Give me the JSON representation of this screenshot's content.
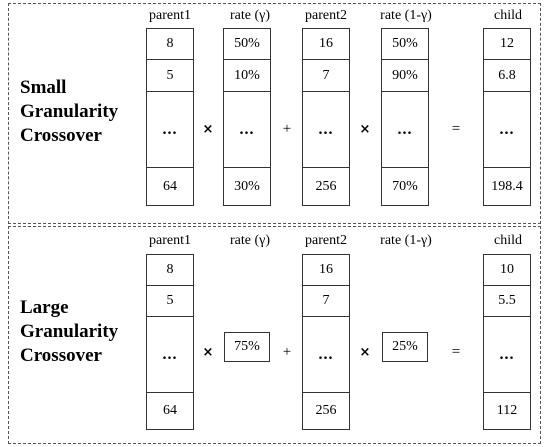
{
  "panels": [
    {
      "title_lines": [
        "Small",
        "Granularity",
        "Crossover"
      ],
      "headers": [
        "parent1",
        "rate (γ)",
        "parent2",
        "rate (1-γ)",
        "child"
      ],
      "parent1": [
        "8",
        "5",
        "...",
        "64"
      ],
      "rate_gamma": [
        "50%",
        "10%",
        "...",
        "30%"
      ],
      "parent2": [
        "16",
        "7",
        "...",
        "256"
      ],
      "rate_one_minus_gamma": [
        "50%",
        "90%",
        "...",
        "70%"
      ],
      "child": [
        "12",
        "6.8",
        "...",
        "198.4"
      ],
      "operators": [
        "×",
        "+",
        "×",
        "="
      ]
    },
    {
      "title_lines": [
        "Large",
        "Granularity",
        "Crossover"
      ],
      "headers": [
        "parent1",
        "rate (γ)",
        "parent2",
        "rate (1-γ)",
        "child"
      ],
      "parent1": [
        "8",
        "5",
        "...",
        "64"
      ],
      "rate_gamma": "75%",
      "parent2": [
        "16",
        "7",
        "...",
        "256"
      ],
      "rate_one_minus_gamma": "25%",
      "child": [
        "10",
        "5.5",
        "...",
        "112"
      ],
      "operators": [
        "×",
        "+",
        "×",
        "="
      ]
    }
  ]
}
